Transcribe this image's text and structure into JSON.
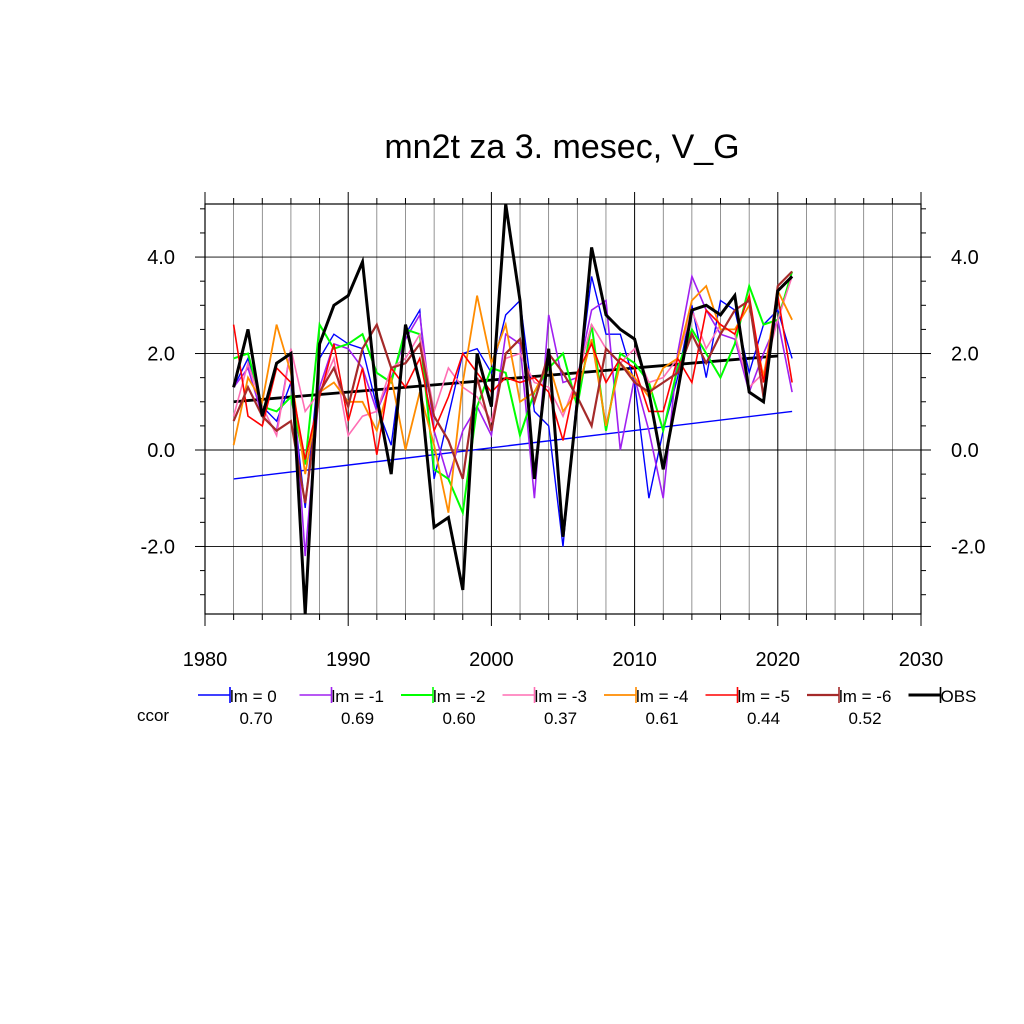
{
  "chart_data": {
    "type": "line",
    "title": "mn2t za 3. mesec, V_G",
    "xlabel": "",
    "ylabel": "",
    "xlim": [
      1980,
      2030
    ],
    "ylim": [
      -3.4,
      5.1
    ],
    "x_ticks": [
      1980,
      1990,
      2000,
      2010,
      2020,
      2030
    ],
    "x_tick_labels": [
      "1980",
      "1990",
      "2000",
      "2010",
      "2020",
      "2030"
    ],
    "y_ticks": [
      -2,
      0,
      2,
      4
    ],
    "y_tick_labels": [
      "-2.0",
      "0.0",
      "2.0",
      "4.0"
    ],
    "grid": true,
    "legend_position": "bottom",
    "x": [
      1982,
      1983,
      1984,
      1985,
      1986,
      1987,
      1988,
      1989,
      1990,
      1991,
      1992,
      1993,
      1994,
      1995,
      1996,
      1997,
      1998,
      1999,
      2000,
      2001,
      2002,
      2003,
      2004,
      2005,
      2006,
      2007,
      2008,
      2009,
      2010,
      2011,
      2012,
      2013,
      2014,
      2015,
      2016,
      2017,
      2018,
      2019,
      2020,
      2021
    ],
    "series": [
      {
        "name": "lm = 0",
        "color": "#0000ff",
        "width": 1.4,
        "values": [
          1.3,
          1.9,
          0.9,
          0.6,
          1.4,
          -1.2,
          1.9,
          2.4,
          2.2,
          2.1,
          0.9,
          0.1,
          2.4,
          2.9,
          -0.6,
          0.7,
          2.0,
          2.1,
          1.6,
          2.8,
          3.1,
          0.8,
          0.5,
          -2.0,
          1.2,
          3.6,
          2.4,
          2.4,
          1.4,
          -1.0,
          0.4,
          1.5,
          3.0,
          1.5,
          3.1,
          2.9,
          1.6,
          2.6,
          2.9,
          1.9
        ]
      },
      {
        "name": "lm = -1",
        "color": "#a020f0",
        "width": 1.6,
        "values": [
          1.3,
          1.7,
          0.7,
          0.4,
          2.1,
          -2.2,
          1.3,
          2.2,
          2.1,
          1.7,
          0.8,
          1.5,
          2.3,
          2.8,
          0.4,
          -0.6,
          0.4,
          0.9,
          0.3,
          2.4,
          2.2,
          -1.0,
          2.8,
          1.4,
          1.5,
          2.9,
          3.1,
          0.0,
          1.5,
          0.4,
          -1.0,
          2.0,
          3.6,
          2.9,
          2.4,
          2.3,
          1.2,
          2.0,
          2.7,
          1.2
        ]
      },
      {
        "name": "lm = -2",
        "color": "#00ff00",
        "width": 2.0,
        "values": [
          1.9,
          2.0,
          0.9,
          0.8,
          1.1,
          -0.3,
          2.6,
          2.1,
          2.2,
          2.4,
          1.6,
          1.4,
          2.5,
          2.4,
          -0.4,
          -0.6,
          -1.3,
          0.9,
          1.7,
          1.6,
          0.3,
          1.2,
          1.7,
          2.0,
          0.9,
          2.6,
          0.4,
          2.0,
          1.8,
          1.4,
          0.4,
          1.7,
          2.5,
          2.0,
          1.5,
          2.2,
          3.4,
          2.6,
          2.7,
          3.7
        ]
      },
      {
        "name": "lm = -3",
        "color": "#ff6eb4",
        "width": 1.6,
        "values": [
          0.7,
          1.8,
          0.9,
          0.3,
          2.1,
          0.8,
          1.2,
          1.9,
          0.3,
          0.7,
          0.8,
          1.7,
          1.9,
          2.4,
          0.8,
          1.7,
          1.3,
          1.1,
          0.6,
          1.9,
          2.0,
          1.4,
          1.3,
          0.7,
          1.5,
          2.6,
          2.1,
          1.8,
          2.1,
          1.4,
          1.5,
          1.9,
          2.9,
          2.1,
          2.6,
          2.4,
          1.3,
          1.6,
          2.7,
          3.6
        ]
      },
      {
        "name": "lm = -4",
        "color": "#ff8c00",
        "width": 1.8,
        "values": [
          0.1,
          1.5,
          1.0,
          2.6,
          1.6,
          -0.5,
          1.2,
          1.4,
          1.0,
          1.0,
          0.4,
          1.5,
          0.0,
          1.2,
          0.1,
          -1.3,
          1.4,
          3.2,
          1.8,
          2.6,
          1.0,
          1.2,
          1.8,
          0.8,
          1.2,
          2.3,
          0.5,
          1.8,
          1.5,
          1.1,
          1.7,
          1.9,
          3.1,
          3.4,
          2.5,
          2.5,
          3.0,
          1.5,
          3.3,
          2.7
        ]
      },
      {
        "name": "lm = -5",
        "color": "#ff0000",
        "width": 1.6,
        "values": [
          2.6,
          0.7,
          0.5,
          1.7,
          1.4,
          -0.2,
          1.1,
          2.2,
          0.6,
          1.7,
          -0.1,
          1.7,
          1.3,
          1.9,
          0.4,
          1.1,
          2.0,
          1.6,
          1.2,
          1.5,
          1.4,
          1.5,
          1.2,
          0.2,
          1.6,
          2.2,
          1.4,
          1.9,
          1.7,
          0.8,
          0.8,
          1.9,
          1.4,
          2.9,
          2.6,
          2.4,
          3.2,
          1.4,
          3.2,
          1.4
        ]
      },
      {
        "name": "lm = -6",
        "color": "#a52a2a",
        "width": 2.2,
        "values": [
          0.6,
          1.3,
          0.7,
          0.4,
          0.6,
          -1.1,
          1.2,
          1.7,
          0.9,
          2.1,
          2.6,
          1.7,
          1.8,
          2.2,
          0.7,
          0.2,
          -0.6,
          1.5,
          0.4,
          2.0,
          2.3,
          1.0,
          2.0,
          1.6,
          1.1,
          0.5,
          2.1,
          1.8,
          1.4,
          1.2,
          1.4,
          1.6,
          2.4,
          1.8,
          2.4,
          2.9,
          3.1,
          1.1,
          3.4,
          3.7
        ]
      },
      {
        "name": "OBS",
        "color": "#000000",
        "width": 3.0,
        "values": [
          1.3,
          2.5,
          0.7,
          1.8,
          2.0,
          -3.4,
          2.2,
          3.0,
          3.2,
          3.9,
          1.1,
          -0.5,
          2.6,
          1.4,
          -1.6,
          -1.4,
          -2.9,
          2.0,
          0.9,
          5.1,
          3.1,
          -0.6,
          2.1,
          -1.8,
          1.0,
          4.2,
          2.8,
          2.5,
          2.3,
          1.2,
          -0.4,
          1.2,
          2.9,
          3.0,
          2.8,
          3.2,
          1.2,
          1.0,
          3.3,
          3.6
        ]
      }
    ],
    "trend_lines": [
      {
        "color": "#0000ff",
        "width": 1.4,
        "x": [
          1982,
          2021
        ],
        "y": [
          -0.6,
          0.8
        ]
      },
      {
        "color": "#000000",
        "width": 2.8,
        "x": [
          1982,
          2020
        ],
        "y": [
          1.0,
          1.95
        ]
      }
    ],
    "ccor_label": "ccor",
    "ccor_label_color": "#0000ff",
    "ccor_values": [
      "0.70",
      "0.69",
      "0.60",
      "0.37",
      "0.61",
      "0.44",
      "0.52"
    ]
  }
}
